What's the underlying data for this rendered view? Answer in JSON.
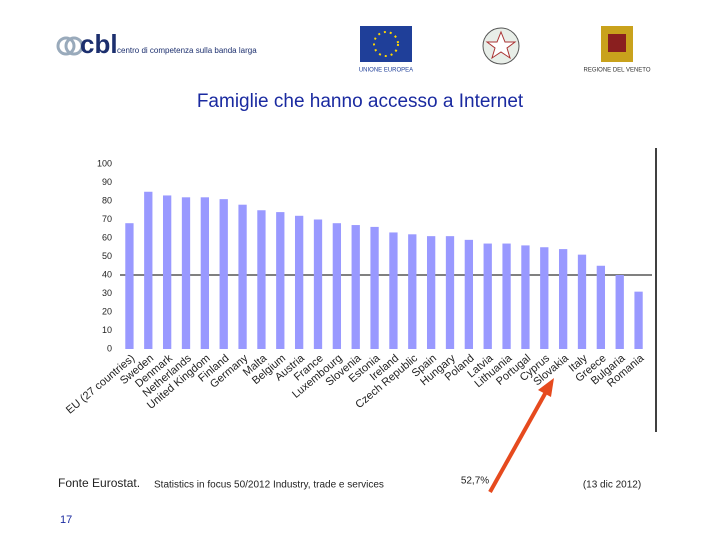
{
  "header": {
    "logo_text": "cbl",
    "logo_subtitle": "centro di competenza sulla banda larga",
    "eu_label": "UNIONE EUROPEA",
    "region_label": "REGIONE DEL VENETO"
  },
  "chart_data": {
    "type": "bar",
    "title": "Famiglie che hanno accesso a Internet",
    "categories": [
      "EU (27 countries)",
      "Sweden",
      "Denmark",
      "Netherlands",
      "United Kingdom",
      "Finland",
      "Germany",
      "Malta",
      "Belgium",
      "Austria",
      "France",
      "Luxembourg",
      "Slovenia",
      "Estonia",
      "Ireland",
      "Czech Republic",
      "Spain",
      "Hungary",
      "Poland",
      "Latvia",
      "Lithuania",
      "Portugal",
      "Cyprus",
      "Slovakia",
      "Italy",
      "Greece",
      "Bulgaria",
      "Romania"
    ],
    "values": [
      68,
      85,
      83,
      82,
      82,
      81,
      78,
      75,
      74,
      72,
      70,
      68,
      67,
      66,
      63,
      62,
      61,
      61,
      59,
      57,
      57,
      56,
      55,
      54,
      51,
      45,
      40,
      31
    ],
    "color": "#9999ff",
    "ylim": [
      0,
      100
    ],
    "yticks": [
      0,
      10,
      20,
      30,
      40,
      50,
      60,
      70,
      80,
      90,
      100
    ],
    "reference_line": 40,
    "annotation": "52,7%"
  },
  "footer": {
    "source": "Fonte Eurostat.",
    "source_detail": "Statistics in focus 50/2012 Industry, trade e services",
    "date": "(13 dic 2012)",
    "page_number": "17"
  }
}
